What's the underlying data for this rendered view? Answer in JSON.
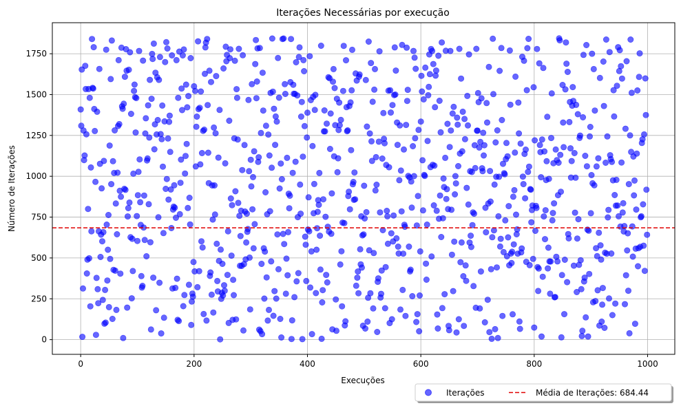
{
  "chart_data": {
    "type": "scatter",
    "title": "Iterações Necessárias por execução",
    "xlabel": "Execuções",
    "ylabel": "Número de Iterações",
    "xlim": [
      -50,
      1048
    ],
    "ylim": [
      -90,
      1940
    ],
    "xticks": [
      0,
      200,
      400,
      600,
      800,
      1000
    ],
    "yticks": [
      0,
      250,
      500,
      750,
      1000,
      1250,
      1500,
      1750
    ],
    "grid": true,
    "legend_position": "bottom-right",
    "series": [
      {
        "name": "Iterações",
        "kind": "scatter",
        "color": "#0000ff",
        "n_points": 1000,
        "x_range": [
          0,
          999
        ],
        "y_range": [
          0,
          1845
        ],
        "distribution": "approximately uniform",
        "values": []
      },
      {
        "name": "Média de Iterações: 684.44",
        "kind": "hline",
        "color": "#ff0000",
        "y": 684.44
      }
    ]
  }
}
